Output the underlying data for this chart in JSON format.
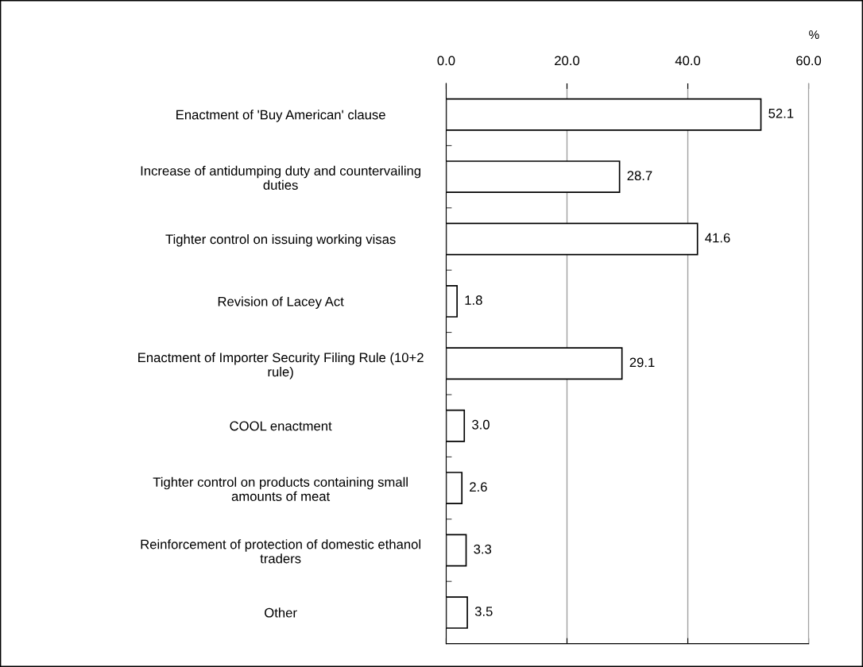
{
  "chart_data": {
    "type": "bar",
    "orientation": "horizontal",
    "xlabel": "%",
    "categories": [
      "Enactment of 'Buy American' clause",
      "Increase of antidumping duty and countervailing\nduties",
      "Tighter control on issuing working visas",
      "Revision of Lacey Act",
      "Enactment of Importer Security Filing Rule (10+2\nrule)",
      "COOL enactment",
      "Tighter control on products containing small\namounts of meat",
      "Reinforcement of protection of domestic ethanol\ntraders",
      "Other"
    ],
    "values": [
      52.1,
      28.7,
      41.6,
      1.8,
      29.1,
      3.0,
      2.6,
      3.3,
      3.5
    ],
    "color": "#ffffff",
    "xlim": [
      0,
      60
    ],
    "xticks": [
      {
        "value": 0,
        "label": "0.0"
      },
      {
        "value": 20,
        "label": "20.0"
      },
      {
        "value": 40,
        "label": "40.0"
      },
      {
        "value": 60,
        "label": "60.0"
      }
    ],
    "value_labels": [
      "52.1",
      "28.7",
      "41.6",
      "1.8",
      "29.1",
      "3.0",
      "2.6",
      "3.3",
      "3.5"
    ],
    "grid": "x"
  }
}
